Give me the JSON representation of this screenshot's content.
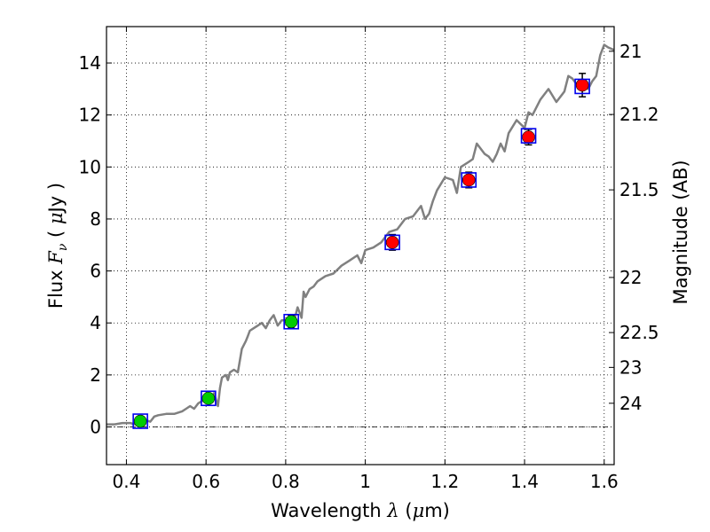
{
  "chart_data": {
    "type": "scatter",
    "xlabel": "Wavelength  λ (μm)",
    "ylabel": "Flux  Fν  ( μJy )",
    "ylabel_parts": {
      "pre": "Flux  ",
      "f": "F",
      "nu": "ν",
      "mid": "  (  ",
      "mu": "μ",
      "post": "Jy )"
    },
    "xlabel_parts": {
      "pre": "Wavelength  ",
      "lambda": "λ",
      "mid": " (",
      "mu": "μ",
      "post": "m)"
    },
    "y2label": "Magnitude (AB)",
    "xlim": [
      0.35,
      1.625
    ],
    "ylim": [
      -1.45,
      15.4
    ],
    "grid": true,
    "x_ticks": [
      {
        "v": 0.4,
        "label": "0.4"
      },
      {
        "v": 0.6,
        "label": "0.6"
      },
      {
        "v": 0.8,
        "label": "0.8"
      },
      {
        "v": 1.0,
        "label": "1"
      },
      {
        "v": 1.2,
        "label": "1.2"
      },
      {
        "v": 1.4,
        "label": "1.4"
      },
      {
        "v": 1.6,
        "label": "1.6"
      }
    ],
    "y_ticks": [
      {
        "v": 0,
        "label": "0"
      },
      {
        "v": 2,
        "label": "2"
      },
      {
        "v": 4,
        "label": "4"
      },
      {
        "v": 6,
        "label": "6"
      },
      {
        "v": 8,
        "label": "8"
      },
      {
        "v": 10,
        "label": "10"
      },
      {
        "v": 12,
        "label": "12"
      },
      {
        "v": 14,
        "label": "14"
      }
    ],
    "mag_ticks": [
      {
        "flux": 14.45,
        "label": "21"
      },
      {
        "flux": 12.02,
        "label": "21.2"
      },
      {
        "flux": 9.12,
        "label": "21.5"
      },
      {
        "flux": 5.75,
        "label": "22"
      },
      {
        "flux": 3.63,
        "label": "22.5"
      },
      {
        "flux": 2.29,
        "label": "23"
      },
      {
        "flux": 0.91,
        "label": "24"
      }
    ],
    "spectrum": {
      "name": "model spectrum",
      "color": "#808080",
      "x": [
        0.35,
        0.37,
        0.39,
        0.41,
        0.42,
        0.44,
        0.46,
        0.47,
        0.48,
        0.5,
        0.52,
        0.54,
        0.55,
        0.56,
        0.57,
        0.58,
        0.59,
        0.6,
        0.61,
        0.62,
        0.63,
        0.635,
        0.64,
        0.65,
        0.655,
        0.66,
        0.67,
        0.68,
        0.69,
        0.7,
        0.705,
        0.71,
        0.72,
        0.73,
        0.74,
        0.75,
        0.76,
        0.77,
        0.78,
        0.79,
        0.8,
        0.81,
        0.82,
        0.83,
        0.84,
        0.845,
        0.85,
        0.86,
        0.87,
        0.88,
        0.9,
        0.92,
        0.94,
        0.96,
        0.98,
        0.99,
        1.0,
        1.02,
        1.04,
        1.06,
        1.08,
        1.1,
        1.12,
        1.14,
        1.15,
        1.16,
        1.17,
        1.18,
        1.2,
        1.22,
        1.23,
        1.24,
        1.26,
        1.27,
        1.28,
        1.3,
        1.31,
        1.32,
        1.33,
        1.34,
        1.35,
        1.36,
        1.38,
        1.4,
        1.41,
        1.42,
        1.44,
        1.46,
        1.48,
        1.5,
        1.51,
        1.52,
        1.53,
        1.54,
        1.55,
        1.56,
        1.57,
        1.58,
        1.59,
        1.6,
        1.61,
        1.625
      ],
      "y": [
        0.1,
        0.1,
        0.15,
        0.15,
        0.1,
        0.3,
        0.2,
        0.4,
        0.45,
        0.5,
        0.5,
        0.6,
        0.7,
        0.8,
        0.7,
        0.9,
        1.0,
        1.1,
        0.9,
        1.3,
        0.8,
        1.5,
        1.9,
        2.0,
        1.8,
        2.1,
        2.2,
        2.1,
        3.0,
        3.3,
        3.5,
        3.7,
        3.8,
        3.9,
        4.0,
        3.8,
        4.1,
        4.3,
        3.9,
        4.1,
        4.1,
        4.2,
        4.0,
        4.6,
        4.2,
        5.2,
        5.0,
        5.3,
        5.4,
        5.6,
        5.8,
        5.9,
        6.2,
        6.4,
        6.6,
        6.3,
        6.8,
        6.9,
        7.1,
        7.5,
        7.6,
        8.0,
        8.1,
        8.5,
        8.0,
        8.2,
        8.7,
        9.1,
        9.6,
        9.5,
        9.0,
        10.0,
        10.2,
        10.3,
        10.9,
        10.5,
        10.4,
        10.2,
        10.5,
        10.9,
        10.6,
        11.3,
        11.8,
        11.5,
        12.1,
        12.0,
        12.6,
        13.0,
        12.5,
        12.9,
        13.5,
        13.4,
        13.2,
        13.1,
        13.3,
        13.0,
        13.3,
        13.5,
        14.3,
        14.7,
        14.6,
        14.5
      ]
    },
    "photometry": [
      {
        "x": 0.435,
        "y": 0.22,
        "err": 0.1,
        "color": "#00cc00"
      },
      {
        "x": 0.606,
        "y": 1.1,
        "err": 0.1,
        "color": "#00cc00"
      },
      {
        "x": 0.814,
        "y": 4.05,
        "err": 0.25,
        "color": "#00cc00"
      },
      {
        "x": 1.068,
        "y": 7.1,
        "err": 0.3,
        "color": "#ff0000"
      },
      {
        "x": 1.26,
        "y": 9.5,
        "err": 0.3,
        "color": "#ff0000"
      },
      {
        "x": 1.41,
        "y": 11.15,
        "err": 0.3,
        "color": "#ff0000"
      },
      {
        "x": 1.545,
        "y": 13.15,
        "err": 0.45,
        "color": "#ff0000"
      }
    ],
    "model_points": [
      {
        "x": 0.435,
        "y": 0.22
      },
      {
        "x": 0.606,
        "y": 1.1
      },
      {
        "x": 0.814,
        "y": 4.05
      },
      {
        "x": 1.068,
        "y": 7.1
      },
      {
        "x": 1.26,
        "y": 9.5
      },
      {
        "x": 1.41,
        "y": 11.2
      },
      {
        "x": 1.545,
        "y": 13.1
      }
    ],
    "zero_line": 0
  }
}
